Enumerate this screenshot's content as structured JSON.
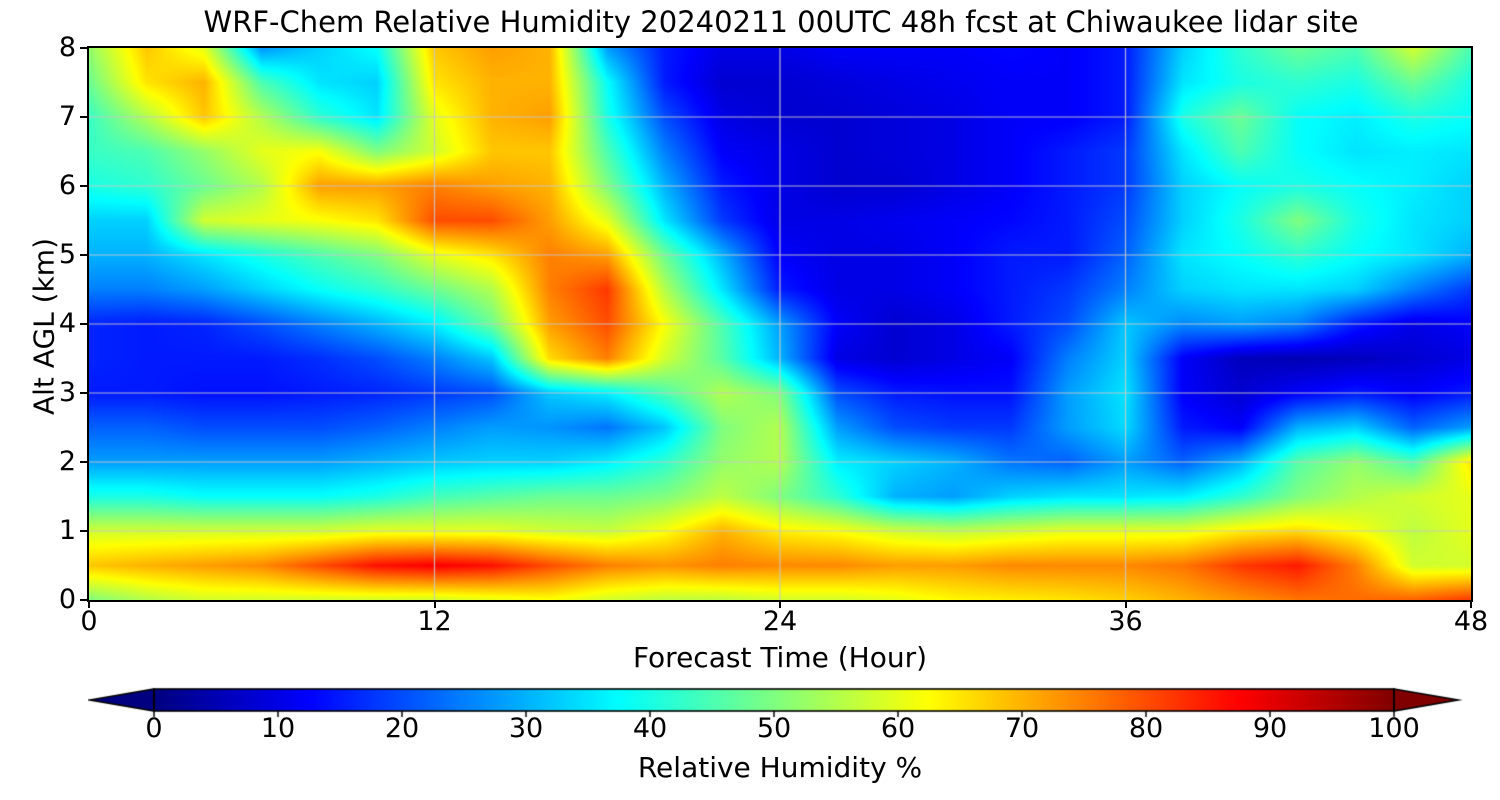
{
  "chart_data": {
    "type": "heatmap",
    "title": "WRF-Chem Relative Humidity 20240211 00UTC 48h fcst at Chiwaukee lidar site",
    "xlabel": "Forecast Time (Hour)",
    "ylabel": "Alt AGL (km)",
    "colorbar_label": "Relative Humidity %",
    "colormap": "jet",
    "colorbar_extend": "both",
    "grid": true,
    "xlim": [
      0,
      48
    ],
    "ylim": [
      0,
      8
    ],
    "clim": [
      0,
      100
    ],
    "x_ticks": [
      0,
      12,
      24,
      36,
      48
    ],
    "y_ticks": [
      0,
      1,
      2,
      3,
      4,
      5,
      6,
      7,
      8
    ],
    "colorbar_ticks": [
      0,
      10,
      20,
      30,
      40,
      50,
      60,
      70,
      80,
      90,
      100
    ],
    "x_hours": [
      0,
      2,
      4,
      6,
      8,
      10,
      12,
      14,
      16,
      18,
      20,
      22,
      24,
      26,
      28,
      30,
      32,
      34,
      36,
      38,
      40,
      42,
      44,
      46,
      48
    ],
    "alt_km": [
      0,
      0.5,
      1,
      1.5,
      2,
      2.5,
      3,
      3.5,
      4,
      4.5,
      5,
      5.5,
      6,
      6.5,
      7,
      7.5,
      8
    ],
    "rh_grid": [
      [
        50,
        55,
        58,
        58,
        58,
        58,
        58,
        60,
        62,
        58,
        56,
        56,
        58,
        58,
        60,
        63,
        64,
        65,
        67,
        70,
        73,
        76,
        77,
        78,
        82
      ],
      [
        68,
        70,
        72,
        74,
        80,
        86,
        88,
        86,
        80,
        75,
        73,
        75,
        74,
        74,
        72,
        72,
        74,
        74,
        74,
        76,
        82,
        85,
        75,
        58,
        58
      ],
      [
        58,
        58,
        58,
        58,
        58,
        60,
        60,
        60,
        58,
        57,
        62,
        70,
        64,
        62,
        58,
        56,
        58,
        60,
        60,
        60,
        64,
        66,
        62,
        56,
        60
      ],
      [
        40,
        40,
        38,
        38,
        38,
        40,
        44,
        46,
        48,
        48,
        50,
        56,
        50,
        42,
        30,
        28,
        33,
        35,
        35,
        36,
        42,
        50,
        55,
        58,
        60
      ],
      [
        28,
        28,
        28,
        28,
        28,
        30,
        32,
        33,
        33,
        36,
        42,
        52,
        55,
        36,
        33,
        30,
        24,
        22,
        28,
        22,
        30,
        46,
        52,
        45,
        65
      ],
      [
        22,
        22,
        20,
        20,
        20,
        22,
        25,
        28,
        27,
        24,
        32,
        50,
        55,
        28,
        20,
        18,
        18,
        28,
        34,
        15,
        12,
        30,
        33,
        22,
        28
      ],
      [
        15,
        15,
        14,
        14,
        15,
        16,
        18,
        20,
        32,
        36,
        45,
        55,
        50,
        20,
        15,
        14,
        14,
        28,
        35,
        12,
        8,
        12,
        15,
        12,
        15
      ],
      [
        16,
        15,
        15,
        15,
        17,
        20,
        25,
        32,
        66,
        75,
        58,
        46,
        30,
        10,
        8,
        10,
        12,
        25,
        33,
        12,
        6,
        5,
        6,
        8,
        10
      ],
      [
        16,
        15,
        16,
        20,
        25,
        30,
        36,
        48,
        72,
        80,
        62,
        45,
        28,
        12,
        8,
        10,
        15,
        20,
        32,
        26,
        28,
        25,
        15,
        10,
        12
      ],
      [
        25,
        25,
        28,
        33,
        38,
        42,
        48,
        55,
        75,
        82,
        55,
        35,
        15,
        10,
        10,
        12,
        15,
        18,
        25,
        33,
        35,
        35,
        33,
        25,
        18
      ],
      [
        30,
        30,
        35,
        40,
        45,
        50,
        60,
        65,
        75,
        72,
        48,
        30,
        12,
        10,
        10,
        12,
        15,
        15,
        22,
        35,
        38,
        42,
        38,
        35,
        30
      ],
      [
        33,
        33,
        58,
        60,
        62,
        65,
        80,
        80,
        72,
        60,
        35,
        18,
        10,
        10,
        11,
        12,
        13,
        15,
        20,
        33,
        40,
        50,
        40,
        35,
        33
      ],
      [
        40,
        42,
        48,
        55,
        72,
        72,
        75,
        72,
        70,
        50,
        30,
        15,
        10,
        8,
        8,
        10,
        12,
        15,
        18,
        33,
        38,
        40,
        38,
        36,
        33
      ],
      [
        43,
        45,
        52,
        60,
        62,
        50,
        58,
        68,
        68,
        45,
        25,
        12,
        10,
        8,
        9,
        10,
        12,
        15,
        18,
        35,
        45,
        38,
        35,
        36,
        35
      ],
      [
        43,
        55,
        68,
        55,
        42,
        35,
        60,
        70,
        72,
        40,
        20,
        10,
        8,
        8,
        9,
        10,
        12,
        12,
        15,
        40,
        48,
        38,
        36,
        40,
        38
      ],
      [
        48,
        65,
        70,
        45,
        35,
        33,
        65,
        70,
        70,
        38,
        15,
        8,
        8,
        9,
        10,
        11,
        12,
        12,
        15,
        35,
        40,
        42,
        40,
        48,
        40
      ],
      [
        52,
        68,
        60,
        27,
        33,
        38,
        68,
        72,
        70,
        28,
        15,
        10,
        10,
        12,
        12,
        12,
        13,
        12,
        15,
        33,
        42,
        48,
        45,
        58,
        45
      ]
    ],
    "colors": {
      "under": "#000080",
      "over": "#800000",
      "grid_line": "#c8c8c8",
      "frame": "#000000",
      "background": "#ffffff"
    }
  }
}
